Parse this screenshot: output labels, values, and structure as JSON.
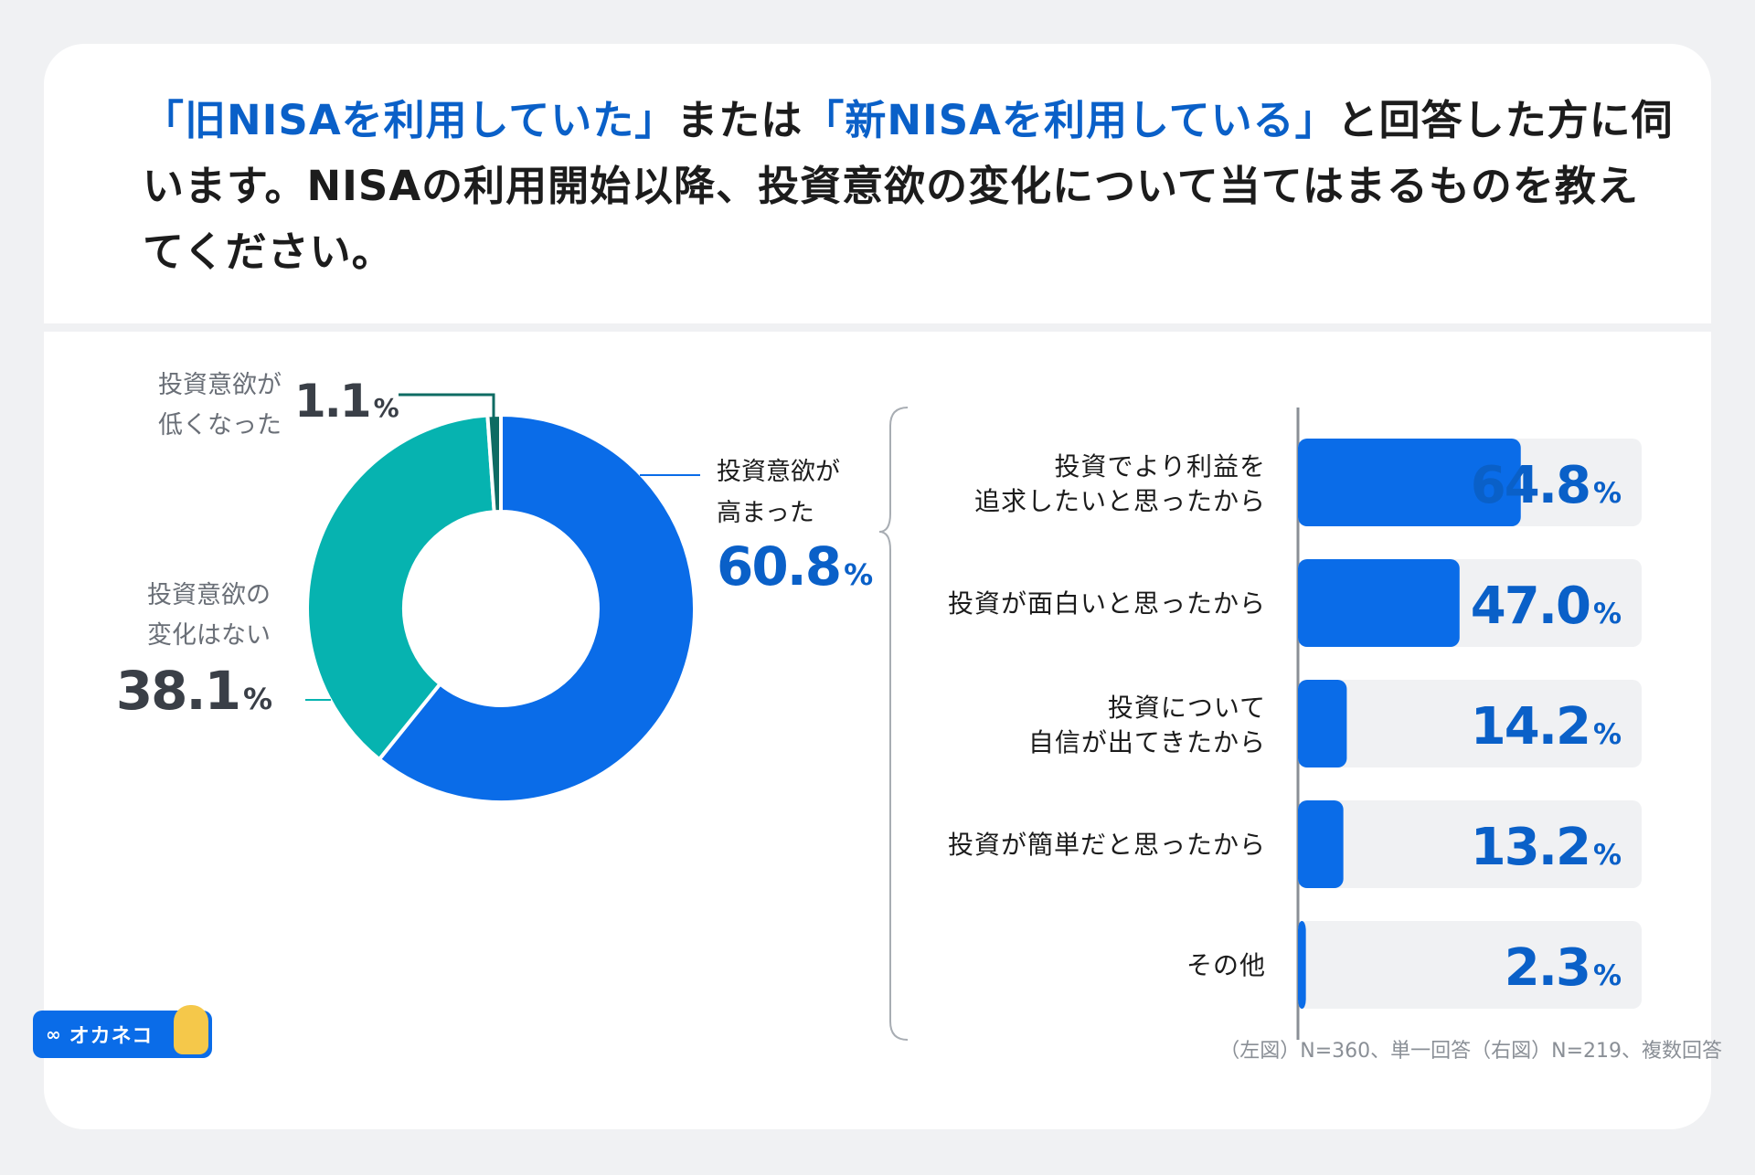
{
  "title": {
    "q1": "「旧NISAを利用していた」",
    "mid": "または",
    "q2": "「新NISAを利用している」",
    "rest": "と回答した方に伺います。NISAの利用開始以降、投資意欲の変化について当てはまるものを教えてください。"
  },
  "percent_sign": "%",
  "colors": {
    "blue": "#0a6ce8",
    "teal": "#06b3b0",
    "dark_teal": "#0e6b63",
    "track": "#f0f1f3",
    "value_blue": "#0a60c8",
    "value_gray": "#3a3f47"
  },
  "chart_data": [
    {
      "type": "pie",
      "variant": "donut",
      "slices": [
        {
          "name": "high",
          "label_lines": [
            "投資意欲が",
            "高まった"
          ],
          "value": 60.8,
          "value_text": "60.8",
          "color": "#0a6ce8"
        },
        {
          "name": "none",
          "label_lines": [
            "投資意欲の",
            "変化はない"
          ],
          "value": 38.1,
          "value_text": "38.1",
          "color": "#06b3b0"
        },
        {
          "name": "low",
          "label_lines": [
            "投資意欲が",
            "低くなった"
          ],
          "value": 1.1,
          "value_text": "1.1",
          "color": "#0e6b63"
        }
      ]
    },
    {
      "type": "bar",
      "orientation": "horizontal",
      "xlim": [
        0,
        100
      ],
      "categories": [
        {
          "lines": [
            "投資でより利益を",
            "追求したいと思ったから"
          ],
          "value": 64.8,
          "value_text": "64.8"
        },
        {
          "lines": [
            "投資が面白いと思ったから"
          ],
          "value": 47.0,
          "value_text": "47.0"
        },
        {
          "lines": [
            "投資について",
            "自信が出てきたから"
          ],
          "value": 14.2,
          "value_text": "14.2"
        },
        {
          "lines": [
            "投資が簡単だと思ったから"
          ],
          "value": 13.2,
          "value_text": "13.2"
        },
        {
          "lines": [
            "その他"
          ],
          "value": 2.3,
          "value_text": "2.3"
        }
      ]
    }
  ],
  "source": "（左図）N=360、単一回答（右図）N=219、複数回答",
  "logo": {
    "icon": "infinity-icon",
    "text": "オカネコ"
  }
}
